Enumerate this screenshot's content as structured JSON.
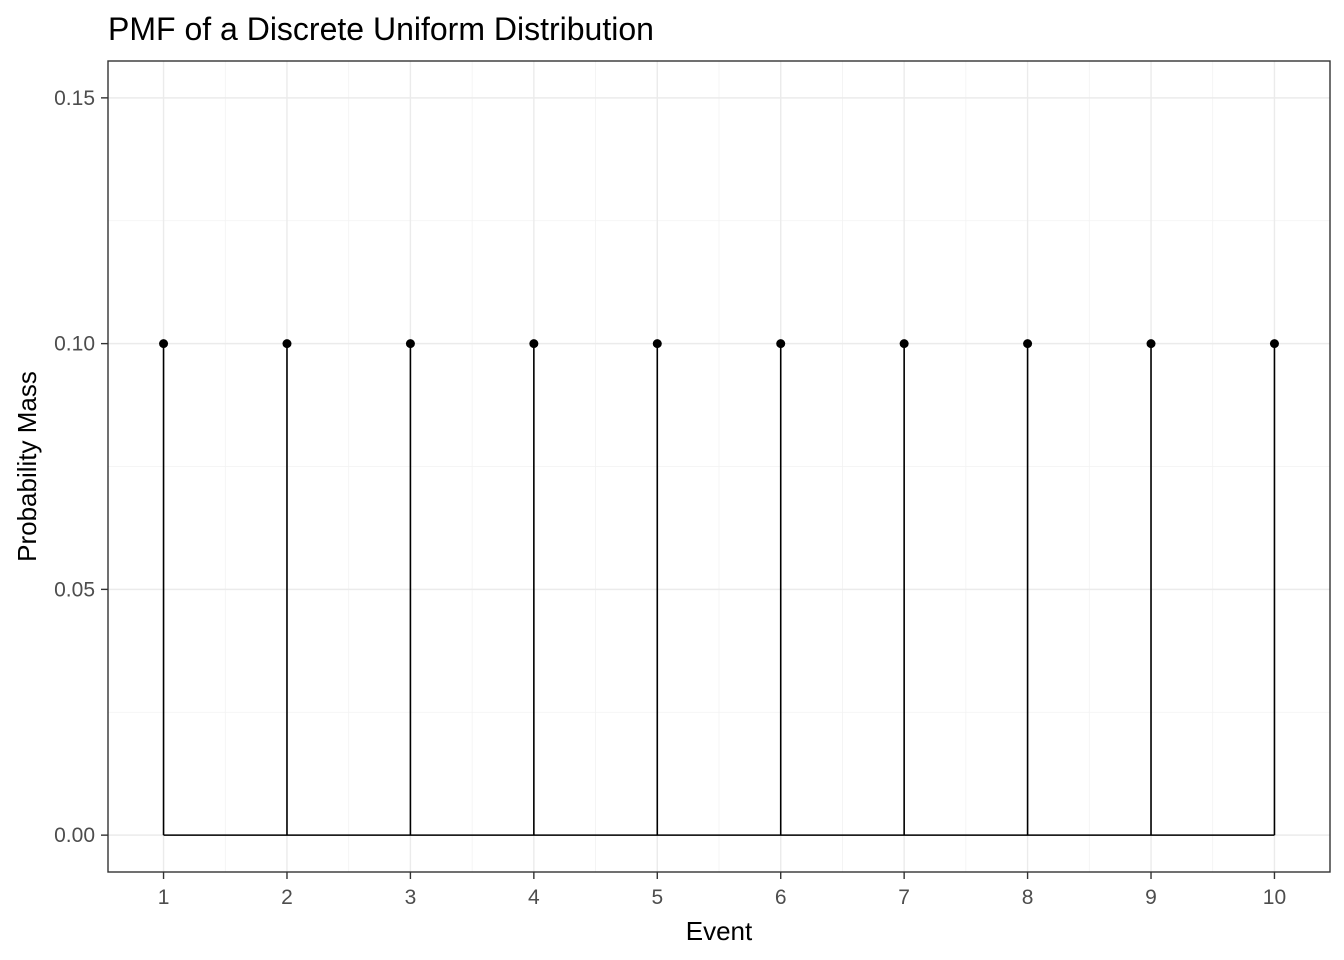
{
  "chart_data": {
    "type": "scatter",
    "subtype": "stem",
    "title": "PMF of a Discrete Uniform Distribution",
    "xlabel": "Event",
    "ylabel": "Probability Mass",
    "x": [
      1,
      2,
      3,
      4,
      5,
      6,
      7,
      8,
      9,
      10
    ],
    "values": [
      0.1,
      0.1,
      0.1,
      0.1,
      0.1,
      0.1,
      0.1,
      0.1,
      0.1,
      0.1
    ],
    "xlim": [
      0.55,
      10.45
    ],
    "ylim": [
      -0.0075,
      0.1575
    ],
    "xticks": [
      1,
      2,
      3,
      4,
      5,
      6,
      7,
      8,
      9,
      10
    ],
    "xtick_labels": [
      "1",
      "2",
      "3",
      "4",
      "5",
      "6",
      "7",
      "8",
      "9",
      "10"
    ],
    "yticks": [
      0.0,
      0.05,
      0.1,
      0.15
    ],
    "ytick_labels": [
      "0.00",
      "0.05",
      "0.10",
      "0.15"
    ],
    "grid": true,
    "legend": "none",
    "colors": {
      "marks": "#000000",
      "grid": "#ebebeb",
      "border": "#333333",
      "tick_text": "#4d4d4d"
    }
  }
}
